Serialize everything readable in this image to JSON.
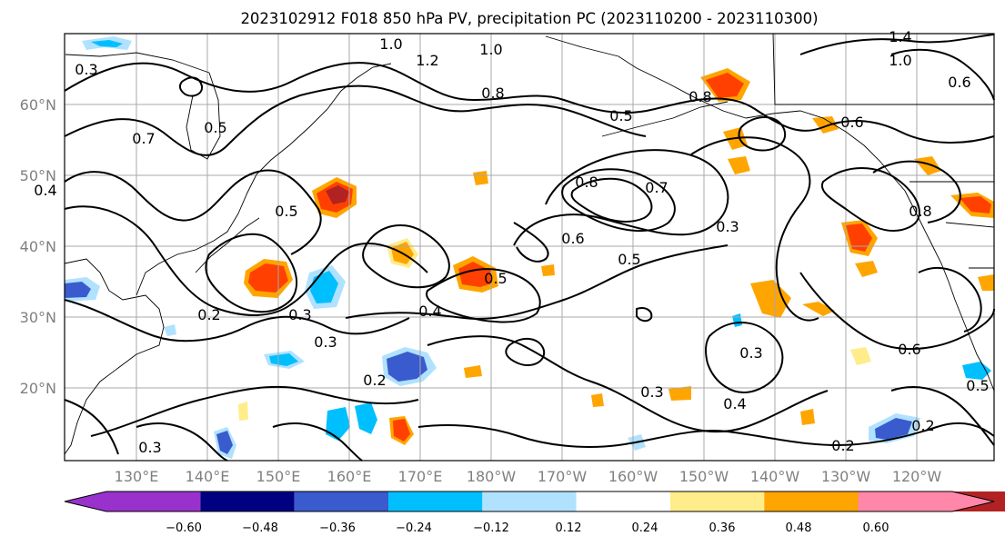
{
  "title": "2023102912 F018 850 hPa PV, precipitation PC (2023110200 - 2023110300)",
  "lat_labels": [
    "60°N",
    "50°N",
    "40°N",
    "30°N",
    "20°N"
  ],
  "lon_labels": [
    "130°E",
    "140°E",
    "150°E",
    "160°E",
    "170°E",
    "180°W",
    "170°W",
    "160°W",
    "150°W",
    "140°W",
    "130°W",
    "120°W"
  ],
  "contour_labels": [
    "0.3",
    "1.0",
    "1.2",
    "1.0",
    "1.4",
    "1.0",
    "0.8",
    "0.6",
    "0.5",
    "0.8",
    "0.6",
    "0.4",
    "0.7",
    "0.5",
    "0.2",
    "0.3",
    "0.3",
    "0.4",
    "0.5",
    "0.8",
    "0.7",
    "0.6",
    "0.5",
    "0.3",
    "0.5",
    "0.6",
    "0.3",
    "0.2",
    "0.3",
    "0.4",
    "0.2",
    "0.2",
    "0.3",
    "0.8",
    "0.5"
  ],
  "colorbar": {
    "ticks": [
      "−0.60",
      "−0.48",
      "−0.36",
      "−0.24",
      "−0.12",
      "0.12",
      "0.24",
      "0.36",
      "0.48",
      "0.60"
    ],
    "colors": [
      "#9932cc",
      "#000080",
      "#3a5bcd",
      "#00bfff",
      "#b0e2ff",
      "#ffffff",
      "#ffec8b",
      "#ffa500",
      "#ff4000",
      "#b22222",
      "#ff88aa"
    ]
  }
}
